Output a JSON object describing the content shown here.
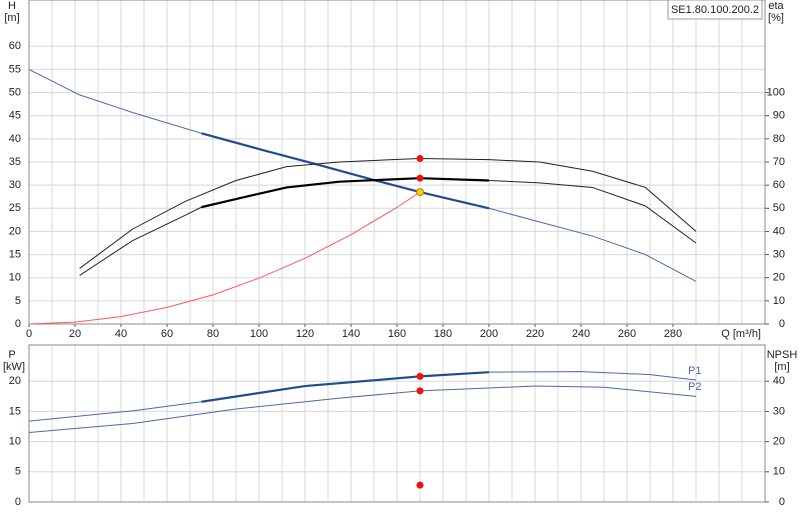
{
  "chart_data": [
    {
      "type": "line",
      "title": "SE1.80.100.200.2",
      "ylabel": "H",
      "yunit": "[m]",
      "y2label": "eta",
      "y2unit": "[%]",
      "xlabel": "Q [m³/h]",
      "xlim": [
        0,
        320
      ],
      "xticks": [
        0,
        20,
        40,
        60,
        80,
        100,
        120,
        140,
        160,
        180,
        200,
        220,
        240,
        260,
        280
      ],
      "x_grid_step": 10,
      "ylim": [
        0,
        70
      ],
      "yticks": [
        0,
        5,
        10,
        15,
        20,
        25,
        30,
        35,
        40,
        45,
        50,
        55,
        60
      ],
      "y2lim": [
        0,
        140
      ],
      "y2ticks": [
        0,
        10,
        20,
        30,
        40,
        50,
        60,
        70,
        80,
        90,
        100
      ],
      "grid": true,
      "series": [
        {
          "color": "#4a6aa5",
          "width": 1,
          "x": [
            0,
            22,
            45,
            75,
            100,
            125,
            150,
            170,
            200,
            220,
            245,
            268,
            290
          ],
          "values": [
            55,
            49.5,
            45.7,
            41.2,
            37.8,
            34.5,
            31.1,
            28.5,
            25,
            22.3,
            19,
            15,
            9.2
          ]
        },
        {
          "color": "#1f4e8c",
          "width": 2.2,
          "x": [
            75,
            100,
            125,
            150,
            170,
            200
          ],
          "values": [
            41.2,
            37.8,
            34.5,
            31.1,
            28.5,
            25
          ]
        },
        {
          "color": "#ff5a5a",
          "width": 1,
          "x": [
            0,
            20,
            40,
            60,
            80,
            100,
            120,
            140,
            160,
            170
          ],
          "values": [
            0,
            0.4,
            1.6,
            3.6,
            6.3,
            9.9,
            14.2,
            19.3,
            25.2,
            28.5
          ]
        },
        {
          "color": "#222222",
          "width": 1,
          "axis": "y2",
          "x": [
            22,
            45,
            68,
            90,
            112,
            135,
            158,
            170,
            200,
            222,
            245,
            268,
            290
          ],
          "values": [
            24,
            41,
            53,
            62,
            68,
            70,
            71,
            71.5,
            71,
            70,
            66,
            59,
            40
          ]
        },
        {
          "color": "#222222",
          "width": 1,
          "axis": "y2",
          "x": [
            22,
            45,
            68,
            75,
            90,
            112,
            135,
            158,
            170,
            200,
            222,
            245,
            268,
            290
          ],
          "values": [
            21,
            36,
            47,
            50.5,
            54,
            59,
            61.5,
            62.5,
            63,
            62,
            61,
            59,
            51,
            35
          ]
        },
        {
          "color": "#000000",
          "width": 2.2,
          "axis": "y2",
          "x": [
            75,
            90,
            112,
            135,
            158,
            170,
            200
          ],
          "values": [
            50.5,
            54,
            59,
            61.5,
            62.5,
            63,
            62
          ]
        }
      ],
      "points": [
        {
          "x": 170,
          "value": 71.5,
          "axis": "y2",
          "color": "#ee1111"
        },
        {
          "x": 170,
          "value": 63,
          "axis": "y2",
          "color": "#ee1111"
        },
        {
          "x": 170,
          "value": 28.5,
          "color": "#ffcc00"
        }
      ]
    },
    {
      "type": "line",
      "ylabel": "P",
      "yunit": "[kW]",
      "y2label": "NPSH",
      "y2unit": "[m]",
      "xlim": [
        0,
        320
      ],
      "x_grid_step": 10,
      "ylim": [
        0,
        26
      ],
      "yticks": [
        0,
        5,
        10,
        15,
        20
      ],
      "y2lim": [
        0,
        52
      ],
      "y2ticks": [
        0,
        10,
        20,
        30,
        40
      ],
      "grid": true,
      "series": [
        {
          "name": "P1",
          "color": "#4a6aa5",
          "width": 1,
          "x": [
            0,
            45,
            75,
            120,
            170,
            200,
            240,
            270,
            290
          ],
          "values": [
            13.4,
            15.1,
            16.6,
            19.2,
            20.8,
            21.5,
            21.6,
            21.1,
            20.2
          ]
        },
        {
          "color": "#1f4e8c",
          "width": 2.2,
          "x": [
            75,
            120,
            170,
            200
          ],
          "values": [
            16.6,
            19.2,
            20.8,
            21.5
          ]
        },
        {
          "name": "P2",
          "color": "#4a6aa5",
          "width": 1,
          "x": [
            0,
            45,
            90,
            135,
            170,
            220,
            250,
            290
          ],
          "values": [
            11.5,
            13,
            15.4,
            17.2,
            18.4,
            19.2,
            19,
            17.5
          ]
        }
      ],
      "points": [
        {
          "x": 170,
          "value": 20.8,
          "color": "#ee1111"
        },
        {
          "x": 170,
          "value": 18.4,
          "color": "#ee1111"
        },
        {
          "x": 170,
          "value": 5.6,
          "axis": "y2",
          "color": "#ee1111"
        }
      ]
    }
  ]
}
